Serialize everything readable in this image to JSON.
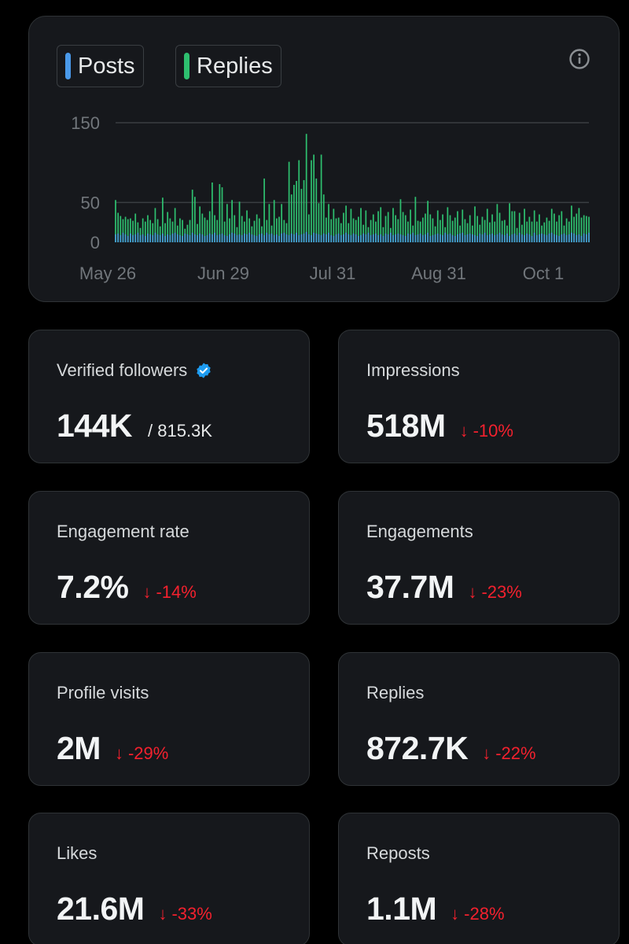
{
  "legend": {
    "posts": {
      "label": "Posts",
      "color": "#4a99e9"
    },
    "replies": {
      "label": "Replies",
      "color": "#2ebf6f"
    }
  },
  "chart_data": {
    "type": "bar",
    "x_ticks": [
      "May 26",
      "Jun 29",
      "Jul 31",
      "Aug 31",
      "Oct 1"
    ],
    "y_ticks": [
      0,
      50,
      150
    ],
    "ylim": [
      0,
      150
    ],
    "series": [
      {
        "name": "Posts",
        "values": [
          10,
          11,
          9,
          12,
          10,
          8,
          11,
          9,
          10,
          12,
          9,
          10,
          8,
          11,
          10,
          9,
          12,
          10,
          9,
          11,
          8,
          10,
          9,
          11,
          12,
          10,
          9,
          8,
          11,
          10,
          9,
          12,
          10,
          9,
          11,
          10,
          8,
          9,
          11,
          10,
          12,
          9,
          10,
          11,
          9,
          8,
          10,
          12,
          11,
          9,
          10,
          9,
          11,
          10,
          12,
          10,
          9,
          8,
          10,
          11,
          9,
          12,
          10,
          11,
          9,
          10,
          8,
          11,
          12,
          10,
          9,
          11,
          10,
          12,
          9,
          10,
          11,
          13,
          10,
          9,
          12,
          11,
          10,
          9,
          11,
          10,
          12,
          9,
          8,
          10,
          11,
          9,
          10,
          12,
          10,
          9,
          11,
          10,
          8,
          9,
          11,
          10,
          12,
          9,
          10,
          11,
          9,
          10,
          8,
          11,
          10,
          12,
          9,
          10,
          11,
          10,
          9,
          8,
          11,
          10,
          12,
          9,
          10,
          11,
          9,
          10,
          12,
          8,
          9,
          10,
          11,
          10,
          9,
          12,
          10,
          11,
          9,
          8,
          10,
          11,
          12,
          9,
          10,
          11,
          10,
          9,
          8,
          11,
          10,
          12,
          9,
          10,
          11,
          9,
          10,
          12,
          10,
          9,
          11,
          8,
          10,
          11,
          9,
          12,
          10,
          9,
          11,
          10,
          8,
          12,
          9,
          10,
          11,
          10,
          9,
          11,
          12,
          10,
          9,
          8,
          10,
          11,
          9,
          10,
          12,
          11,
          9,
          10,
          8,
          11,
          10,
          12,
          9,
          10,
          11,
          9
        ]
      },
      {
        "name": "Replies",
        "values": [
          53,
          37,
          33,
          29,
          32,
          29,
          30,
          27,
          36,
          25,
          18,
          30,
          26,
          34,
          28,
          24,
          43,
          29,
          20,
          56,
          24,
          38,
          30,
          26,
          43,
          21,
          30,
          28,
          17,
          22,
          28,
          66,
          57,
          23,
          45,
          36,
          31,
          28,
          39,
          75,
          34,
          28,
          73,
          69,
          26,
          48,
          30,
          53,
          34,
          19,
          51,
          33,
          26,
          40,
          30,
          20,
          27,
          35,
          30,
          20,
          80,
          28,
          48,
          21,
          53,
          30,
          32,
          48,
          28,
          24,
          101,
          60,
          72,
          77,
          103,
          67,
          78,
          136,
          35,
          103,
          110,
          80,
          49,
          110,
          60,
          31,
          48,
          29,
          42,
          30,
          31,
          24,
          37,
          46,
          24,
          42,
          30,
          28,
          32,
          43,
          22,
          40,
          19,
          28,
          35,
          26,
          39,
          44,
          19,
          33,
          38,
          18,
          43,
          34,
          29,
          54,
          38,
          34,
          26,
          41,
          21,
          57,
          27,
          26,
          31,
          36,
          52,
          35,
          30,
          20,
          40,
          28,
          35,
          19,
          44,
          34,
          27,
          31,
          39,
          21,
          41,
          29,
          24,
          34,
          21,
          45,
          33,
          22,
          32,
          28,
          42,
          25,
          35,
          26,
          48,
          37,
          27,
          28,
          21,
          49,
          39,
          39,
          18,
          37,
          22,
          42,
          26,
          32,
          26,
          40,
          26,
          35,
          21,
          25,
          31,
          27,
          42,
          36,
          26,
          34,
          39,
          21,
          30,
          26,
          46,
          32,
          36,
          43,
          31,
          34,
          33,
          32
        ]
      }
    ]
  },
  "stats": [
    {
      "label": "Verified followers",
      "value": "144K",
      "sub": "/ 815.3K",
      "verified": true
    },
    {
      "label": "Impressions",
      "value": "518M",
      "arrow": "↓",
      "change": "-10%"
    },
    {
      "label": "Engagement rate",
      "value": "7.2%",
      "arrow": "↓",
      "change": "-14%"
    },
    {
      "label": "Engagements",
      "value": "37.7M",
      "arrow": "↓",
      "change": "-23%"
    },
    {
      "label": "Profile visits",
      "value": "2M",
      "arrow": "↓",
      "change": "-29%"
    },
    {
      "label": "Replies",
      "value": "872.7K",
      "arrow": "↓",
      "change": "-22%"
    },
    {
      "label": "Likes",
      "value": "21.6M",
      "arrow": "↓",
      "change": "-33%"
    },
    {
      "label": "Reposts",
      "value": "1.1M",
      "arrow": "↓",
      "change": "-28%"
    }
  ],
  "colors": {
    "negative": "#f4212e",
    "verified_badge": "#1d9bf0",
    "grid": "#3a3e42",
    "axis_text": "#71767b"
  },
  "icons": {
    "info": "info-circle-icon",
    "verified": "verified-badge-icon"
  }
}
